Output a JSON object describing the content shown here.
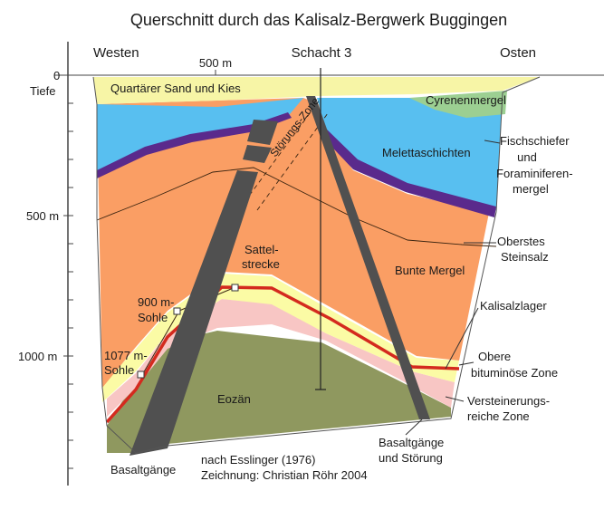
{
  "title": "Querschnitt durch das Kalisalz-Bergwerk Buggingen",
  "directions": {
    "west": "Westen",
    "east": "Osten",
    "shaft": "Schacht 3"
  },
  "scale": {
    "zero": "0",
    "depth_label": "Tiefe",
    "d500": "500 m",
    "d1000": "1000 m",
    "horizontal": "500 m"
  },
  "layers": {
    "quartaer": "Quartärer Sand und Kies",
    "cyrenen": "Cyrenenmergel",
    "melett": "Melettaschichten",
    "fisch": [
      "Fischschiefer",
      "und",
      "Foraminiferen-",
      "mergel"
    ],
    "steinsalz": [
      "Oberstes",
      "Steinsalz"
    ],
    "bunte": "Bunte Mergel",
    "kalisalz": "Kalisalzlager",
    "bitum": [
      "Obere",
      "bituminöse Zone"
    ],
    "verst": [
      "Versteinerungs-",
      "reiche Zone"
    ],
    "eozaen": "Eozän"
  },
  "features": {
    "stoerungszone": "Störungs-Zone",
    "sattel": [
      "Sattel-",
      "strecke"
    ],
    "sohle900": [
      "900 m-",
      "Sohle"
    ],
    "sohle1077": [
      "1077 m-",
      "Sohle"
    ],
    "basaltgaenge": "Basaltgänge",
    "basalt_stoerung": [
      "Basaltgänge",
      "und Störung"
    ]
  },
  "credit": [
    "nach Esslinger (1976)",
    "Zeichnung: Christian Röhr 2004"
  ],
  "colors": {
    "quartaer": "#f7f5a6",
    "cyrenen": "#9ccf92",
    "melett": "#58bff0",
    "fisch": "#5a2a8c",
    "bunte": "#fa9e64",
    "bitum": "#fbfba5",
    "kalisalz": "#d42a1e",
    "verst": "#f8c6c4",
    "eozaen": "#8f985f",
    "basalt": "#505050"
  }
}
